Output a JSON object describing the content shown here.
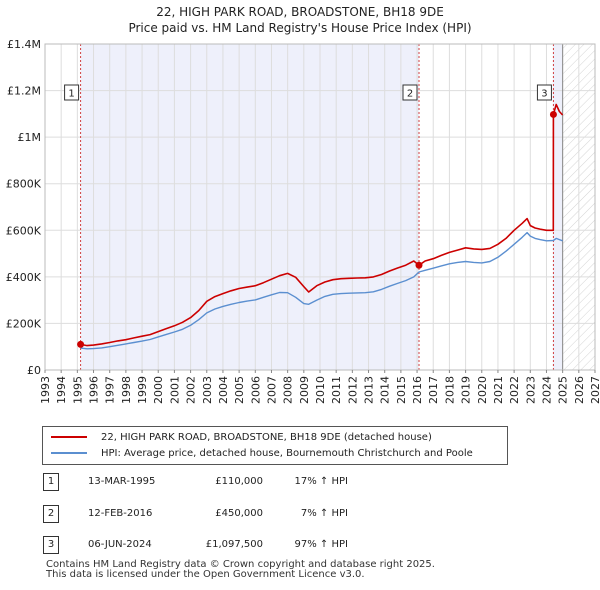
{
  "title_line1": "22, HIGH PARK ROAD, BROADSTONE, BH18 9DE",
  "title_line2": "Price paid vs. HM Land Registry's House Price Index (HPI)",
  "chart_data": {
    "type": "line",
    "title": "22, HIGH PARK ROAD, BROADSTONE, BH18 9DE — Price paid vs. HM Land Registry's House Price Index (HPI)",
    "xlim": [
      1993,
      2027
    ],
    "ylim": [
      0,
      1400000
    ],
    "x_ticks": [
      "1993",
      "1994",
      "1995",
      "1996",
      "1997",
      "1998",
      "1999",
      "2000",
      "2001",
      "2002",
      "2003",
      "2004",
      "2005",
      "2006",
      "2007",
      "2008",
      "2009",
      "2010",
      "2011",
      "2012",
      "2013",
      "2014",
      "2015",
      "2016",
      "2017",
      "2018",
      "2019",
      "2020",
      "2021",
      "2022",
      "2023",
      "2024",
      "2025",
      "2026",
      "2027"
    ],
    "y_ticks": [
      {
        "value": 0,
        "label": "£0"
      },
      {
        "value": 200000,
        "label": "£200K"
      },
      {
        "value": 400000,
        "label": "£400K"
      },
      {
        "value": 600000,
        "label": "£600K"
      },
      {
        "value": 800000,
        "label": "£800K"
      },
      {
        "value": 1000000,
        "label": "£1M"
      },
      {
        "value": 1200000,
        "label": "£1.2M"
      },
      {
        "value": 1400000,
        "label": "£1.4M"
      }
    ],
    "series": [
      {
        "name": "22, HIGH PARK ROAD, BROADSTONE, BH18 9DE (detached house)",
        "color": "#cc0000",
        "x": [
          1995.2,
          1995.6,
          1996.0,
          1996.5,
          1997.0,
          1997.5,
          1998.0,
          1998.5,
          1999.0,
          1999.5,
          2000.0,
          2000.5,
          2001.0,
          2001.5,
          2002.0,
          2002.5,
          2003.0,
          2003.5,
          2004.0,
          2004.5,
          2005.0,
          2005.5,
          2006.0,
          2006.5,
          2007.0,
          2007.5,
          2008.0,
          2008.5,
          2009.0,
          2009.3,
          2009.8,
          2010.3,
          2010.8,
          2011.3,
          2011.8,
          2012.3,
          2012.8,
          2013.3,
          2013.8,
          2014.3,
          2014.8,
          2015.3,
          2015.8,
          2016.12,
          2016.5,
          2017.0,
          2017.5,
          2018.0,
          2018.5,
          2019.0,
          2019.5,
          2020.0,
          2020.5,
          2021.0,
          2021.5,
          2022.0,
          2022.5,
          2022.8,
          2023.0,
          2023.3,
          2023.6,
          2024.0,
          2024.42,
          2024.43,
          2024.6,
          2024.8,
          2025.0
        ],
        "values": [
          110000,
          105000,
          107000,
          112000,
          118000,
          125000,
          130000,
          138000,
          145000,
          152000,
          165000,
          178000,
          190000,
          205000,
          225000,
          255000,
          295000,
          315000,
          328000,
          340000,
          350000,
          356000,
          362000,
          375000,
          390000,
          405000,
          415000,
          398000,
          358000,
          335000,
          362000,
          378000,
          388000,
          392000,
          394000,
          395000,
          396000,
          400000,
          410000,
          425000,
          438000,
          450000,
          468000,
          450000,
          468000,
          478000,
          492000,
          505000,
          515000,
          525000,
          520000,
          518000,
          522000,
          540000,
          565000,
          600000,
          630000,
          650000,
          620000,
          610000,
          605000,
          600000,
          600000,
          1097500,
          1140000,
          1110000,
          1095000
        ]
      },
      {
        "name": "HPI: Average price, detached house, Bournemouth Christchurch and Poole",
        "color": "#5b8fd0",
        "x": [
          1995.2,
          1995.6,
          1996.0,
          1996.5,
          1997.0,
          1997.5,
          1998.0,
          1998.5,
          1999.0,
          1999.5,
          2000.0,
          2000.5,
          2001.0,
          2001.5,
          2002.0,
          2002.5,
          2003.0,
          2003.5,
          2004.0,
          2004.5,
          2005.0,
          2005.5,
          2006.0,
          2006.5,
          2007.0,
          2007.5,
          2008.0,
          2008.5,
          2009.0,
          2009.3,
          2009.8,
          2010.3,
          2010.8,
          2011.3,
          2011.8,
          2012.3,
          2012.8,
          2013.3,
          2013.8,
          2014.3,
          2014.8,
          2015.3,
          2015.8,
          2016.12,
          2016.5,
          2017.0,
          2017.5,
          2018.0,
          2018.5,
          2019.0,
          2019.5,
          2020.0,
          2020.5,
          2021.0,
          2021.5,
          2022.0,
          2022.5,
          2022.8,
          2023.0,
          2023.3,
          2023.6,
          2024.0,
          2024.42,
          2024.6,
          2024.8,
          2025.0
        ],
        "values": [
          94000,
          91000,
          92000,
          95000,
          100000,
          106000,
          112000,
          118000,
          124000,
          131000,
          142000,
          153000,
          163000,
          175000,
          192000,
          216000,
          245000,
          262000,
          273000,
          282000,
          290000,
          296000,
          301000,
          312000,
          323000,
          333000,
          332000,
          312000,
          285000,
          282000,
          300000,
          316000,
          325000,
          328000,
          330000,
          331000,
          332000,
          336000,
          346000,
          360000,
          372000,
          384000,
          400000,
          421000,
          428000,
          437000,
          447000,
          456000,
          462000,
          466000,
          462000,
          460000,
          466000,
          484000,
          510000,
          540000,
          570000,
          590000,
          575000,
          565000,
          560000,
          555000,
          556000,
          565000,
          560000,
          555000
        ]
      }
    ],
    "sales": [
      {
        "id": "1",
        "x": 1995.2,
        "value": 110000
      },
      {
        "id": "2",
        "x": 2016.12,
        "value": 450000
      },
      {
        "id": "3",
        "x": 2024.43,
        "value": 1097500
      }
    ],
    "future_from": 2025.0
  },
  "legend": [
    {
      "label": "22, HIGH PARK ROAD, BROADSTONE, BH18 9DE (detached house)",
      "color": "#cc0000"
    },
    {
      "label": "HPI: Average price, detached house, Bournemouth Christchurch and Poole",
      "color": "#5b8fd0"
    }
  ],
  "transactions": [
    {
      "num": "1",
      "date": "13-MAR-1995",
      "price": "£110,000",
      "hpi": "17% ↑ HPI"
    },
    {
      "num": "2",
      "date": "12-FEB-2016",
      "price": "£450,000",
      "hpi": "7% ↑ HPI"
    },
    {
      "num": "3",
      "date": "06-JUN-2024",
      "price": "£1,097,500",
      "hpi": "97% ↑ HPI"
    }
  ],
  "footer_line1": "Contains HM Land Registry data © Crown copyright and database right 2025.",
  "footer_line2": "This data is licensed under the Open Government Licence v3.0."
}
